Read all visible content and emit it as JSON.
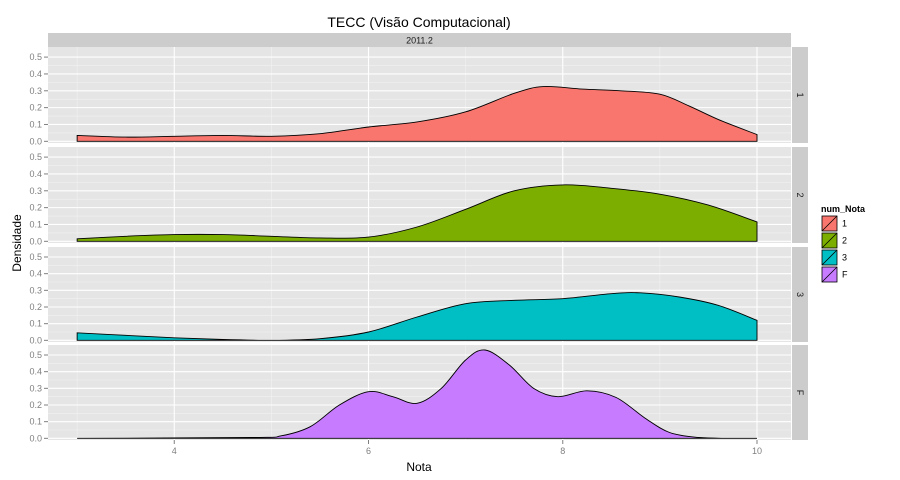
{
  "chart_data": {
    "type": "area",
    "title": "TECC (Visão Computacional)",
    "facet_top": "2011.2",
    "xlabel": "Nota",
    "ylabel": "Densidade",
    "xlim": [
      2.7,
      10.35
    ],
    "ylim": [
      -0.01,
      0.56
    ],
    "x_ticks": [
      4,
      6,
      8,
      10
    ],
    "y_ticks": [
      0.0,
      0.1,
      0.2,
      0.3,
      0.4,
      0.5
    ],
    "y_tick_labels": [
      "0.0",
      "0.1",
      "0.2",
      "0.3",
      "0.4",
      "0.5"
    ],
    "legend": {
      "title": "num_Nota",
      "position": "right",
      "entries": [
        "1",
        "2",
        "3",
        "F"
      ]
    },
    "series": [
      {
        "name": "1",
        "color": "#F8766D",
        "x": [
          3.0,
          3.5,
          4.0,
          4.5,
          5.0,
          5.5,
          6.0,
          6.5,
          7.0,
          7.5,
          7.8,
          8.2,
          8.6,
          9.0,
          9.3,
          9.6,
          10.0
        ],
        "y": [
          0.035,
          0.025,
          0.03,
          0.035,
          0.03,
          0.045,
          0.085,
          0.115,
          0.175,
          0.285,
          0.325,
          0.31,
          0.3,
          0.28,
          0.21,
          0.13,
          0.04
        ]
      },
      {
        "name": "2",
        "color": "#7CAE00",
        "x": [
          3.0,
          3.5,
          4.0,
          4.5,
          5.0,
          5.5,
          6.0,
          6.5,
          7.0,
          7.5,
          8.0,
          8.5,
          9.0,
          9.5,
          10.0
        ],
        "y": [
          0.015,
          0.03,
          0.04,
          0.04,
          0.03,
          0.02,
          0.025,
          0.085,
          0.19,
          0.3,
          0.335,
          0.315,
          0.28,
          0.215,
          0.115
        ]
      },
      {
        "name": "3",
        "color": "#00BFC4",
        "x": [
          3.0,
          3.5,
          4.0,
          4.5,
          5.0,
          5.5,
          6.0,
          6.5,
          7.0,
          7.5,
          8.0,
          8.5,
          8.8,
          9.2,
          9.6,
          10.0
        ],
        "y": [
          0.045,
          0.03,
          0.015,
          0.005,
          0.0,
          0.01,
          0.05,
          0.14,
          0.22,
          0.24,
          0.25,
          0.28,
          0.285,
          0.26,
          0.21,
          0.12
        ]
      },
      {
        "name": "F",
        "color": "#C77CFF",
        "x": [
          3.0,
          4.8,
          5.1,
          5.4,
          5.7,
          6.0,
          6.25,
          6.5,
          6.75,
          7.0,
          7.2,
          7.45,
          7.7,
          7.95,
          8.25,
          8.55,
          8.85,
          9.1,
          9.4,
          9.7,
          10.0
        ],
        "y": [
          0.0,
          0.005,
          0.015,
          0.07,
          0.2,
          0.28,
          0.25,
          0.21,
          0.3,
          0.47,
          0.53,
          0.44,
          0.3,
          0.25,
          0.285,
          0.245,
          0.12,
          0.035,
          0.005,
          0.0,
          0.0
        ]
      }
    ]
  }
}
